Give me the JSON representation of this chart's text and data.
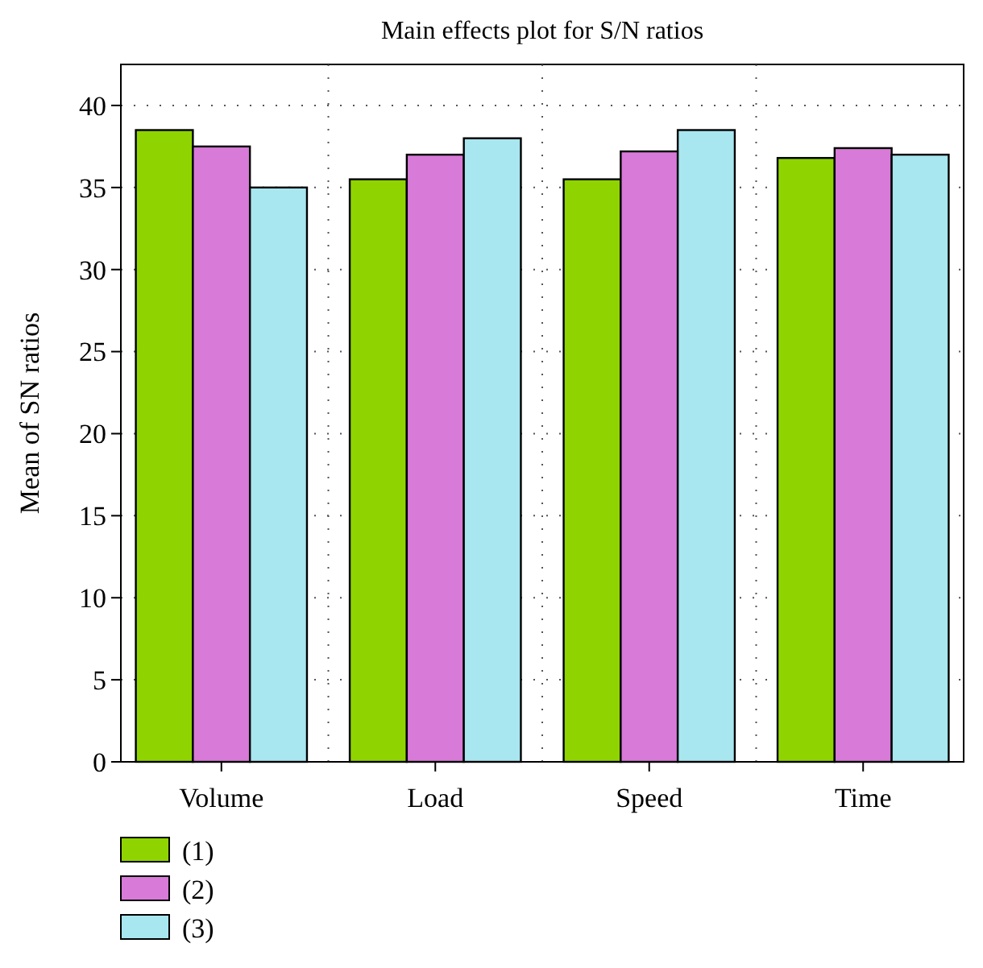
{
  "chart_data": {
    "type": "bar",
    "title": "Main effects plot for S/N ratios",
    "ylabel": "Mean of SN ratios",
    "categories": [
      "Volume",
      "Load",
      "Speed",
      "Time"
    ],
    "series": [
      {
        "name": "(1)",
        "color": "#8fd400",
        "values": [
          38.5,
          35.5,
          35.5,
          36.8
        ]
      },
      {
        "name": "(2)",
        "color": "#d87ad8",
        "values": [
          37.5,
          37,
          37.2,
          37.4
        ]
      },
      {
        "name": "(3)",
        "color": "#a8e6f0",
        "values": [
          35,
          38,
          38.5,
          37
        ]
      }
    ],
    "ylim": [
      0,
      42.5
    ],
    "yticks": [
      0,
      5,
      10,
      15,
      20,
      25,
      30,
      35,
      40
    ],
    "grid": true,
    "legend": "bottom left"
  }
}
